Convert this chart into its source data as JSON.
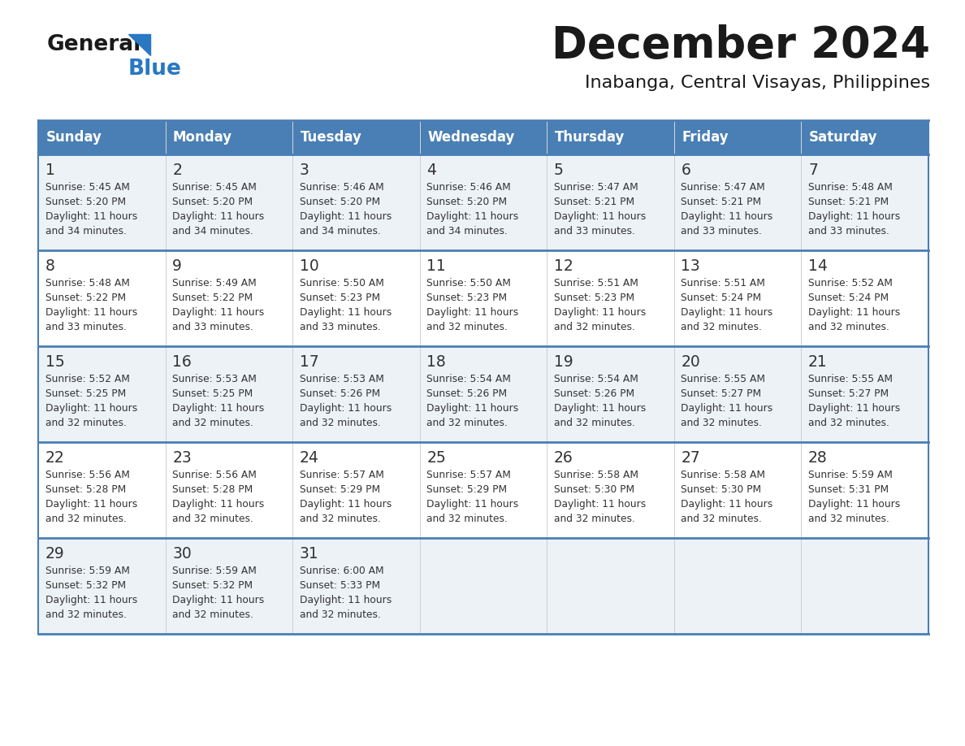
{
  "title": "December 2024",
  "subtitle": "Inabanga, Central Visayas, Philippines",
  "days_of_week": [
    "Sunday",
    "Monday",
    "Tuesday",
    "Wednesday",
    "Thursday",
    "Friday",
    "Saturday"
  ],
  "header_bg": "#4a7fb5",
  "header_text": "#ffffff",
  "cell_bg_odd": "#edf2f7",
  "cell_bg_even": "#ffffff",
  "border_color": "#4a7fb5",
  "text_color": "#333333",
  "title_color": "#1a1a1a",
  "logo_general_color": "#1a1a1a",
  "logo_blue_color": "#2878c3",
  "calendar_data": [
    [
      {
        "day": 1,
        "sunrise": "5:45 AM",
        "sunset": "5:20 PM",
        "daylight_hrs": 11,
        "daylight_min": 34
      },
      {
        "day": 2,
        "sunrise": "5:45 AM",
        "sunset": "5:20 PM",
        "daylight_hrs": 11,
        "daylight_min": 34
      },
      {
        "day": 3,
        "sunrise": "5:46 AM",
        "sunset": "5:20 PM",
        "daylight_hrs": 11,
        "daylight_min": 34
      },
      {
        "day": 4,
        "sunrise": "5:46 AM",
        "sunset": "5:20 PM",
        "daylight_hrs": 11,
        "daylight_min": 34
      },
      {
        "day": 5,
        "sunrise": "5:47 AM",
        "sunset": "5:21 PM",
        "daylight_hrs": 11,
        "daylight_min": 33
      },
      {
        "day": 6,
        "sunrise": "5:47 AM",
        "sunset": "5:21 PM",
        "daylight_hrs": 11,
        "daylight_min": 33
      },
      {
        "day": 7,
        "sunrise": "5:48 AM",
        "sunset": "5:21 PM",
        "daylight_hrs": 11,
        "daylight_min": 33
      }
    ],
    [
      {
        "day": 8,
        "sunrise": "5:48 AM",
        "sunset": "5:22 PM",
        "daylight_hrs": 11,
        "daylight_min": 33
      },
      {
        "day": 9,
        "sunrise": "5:49 AM",
        "sunset": "5:22 PM",
        "daylight_hrs": 11,
        "daylight_min": 33
      },
      {
        "day": 10,
        "sunrise": "5:50 AM",
        "sunset": "5:23 PM",
        "daylight_hrs": 11,
        "daylight_min": 33
      },
      {
        "day": 11,
        "sunrise": "5:50 AM",
        "sunset": "5:23 PM",
        "daylight_hrs": 11,
        "daylight_min": 32
      },
      {
        "day": 12,
        "sunrise": "5:51 AM",
        "sunset": "5:23 PM",
        "daylight_hrs": 11,
        "daylight_min": 32
      },
      {
        "day": 13,
        "sunrise": "5:51 AM",
        "sunset": "5:24 PM",
        "daylight_hrs": 11,
        "daylight_min": 32
      },
      {
        "day": 14,
        "sunrise": "5:52 AM",
        "sunset": "5:24 PM",
        "daylight_hrs": 11,
        "daylight_min": 32
      }
    ],
    [
      {
        "day": 15,
        "sunrise": "5:52 AM",
        "sunset": "5:25 PM",
        "daylight_hrs": 11,
        "daylight_min": 32
      },
      {
        "day": 16,
        "sunrise": "5:53 AM",
        "sunset": "5:25 PM",
        "daylight_hrs": 11,
        "daylight_min": 32
      },
      {
        "day": 17,
        "sunrise": "5:53 AM",
        "sunset": "5:26 PM",
        "daylight_hrs": 11,
        "daylight_min": 32
      },
      {
        "day": 18,
        "sunrise": "5:54 AM",
        "sunset": "5:26 PM",
        "daylight_hrs": 11,
        "daylight_min": 32
      },
      {
        "day": 19,
        "sunrise": "5:54 AM",
        "sunset": "5:26 PM",
        "daylight_hrs": 11,
        "daylight_min": 32
      },
      {
        "day": 20,
        "sunrise": "5:55 AM",
        "sunset": "5:27 PM",
        "daylight_hrs": 11,
        "daylight_min": 32
      },
      {
        "day": 21,
        "sunrise": "5:55 AM",
        "sunset": "5:27 PM",
        "daylight_hrs": 11,
        "daylight_min": 32
      }
    ],
    [
      {
        "day": 22,
        "sunrise": "5:56 AM",
        "sunset": "5:28 PM",
        "daylight_hrs": 11,
        "daylight_min": 32
      },
      {
        "day": 23,
        "sunrise": "5:56 AM",
        "sunset": "5:28 PM",
        "daylight_hrs": 11,
        "daylight_min": 32
      },
      {
        "day": 24,
        "sunrise": "5:57 AM",
        "sunset": "5:29 PM",
        "daylight_hrs": 11,
        "daylight_min": 32
      },
      {
        "day": 25,
        "sunrise": "5:57 AM",
        "sunset": "5:29 PM",
        "daylight_hrs": 11,
        "daylight_min": 32
      },
      {
        "day": 26,
        "sunrise": "5:58 AM",
        "sunset": "5:30 PM",
        "daylight_hrs": 11,
        "daylight_min": 32
      },
      {
        "day": 27,
        "sunrise": "5:58 AM",
        "sunset": "5:30 PM",
        "daylight_hrs": 11,
        "daylight_min": 32
      },
      {
        "day": 28,
        "sunrise": "5:59 AM",
        "sunset": "5:31 PM",
        "daylight_hrs": 11,
        "daylight_min": 32
      }
    ],
    [
      {
        "day": 29,
        "sunrise": "5:59 AM",
        "sunset": "5:32 PM",
        "daylight_hrs": 11,
        "daylight_min": 32
      },
      {
        "day": 30,
        "sunrise": "5:59 AM",
        "sunset": "5:32 PM",
        "daylight_hrs": 11,
        "daylight_min": 32
      },
      {
        "day": 31,
        "sunrise": "6:00 AM",
        "sunset": "5:33 PM",
        "daylight_hrs": 11,
        "daylight_min": 32
      },
      null,
      null,
      null,
      null
    ]
  ]
}
